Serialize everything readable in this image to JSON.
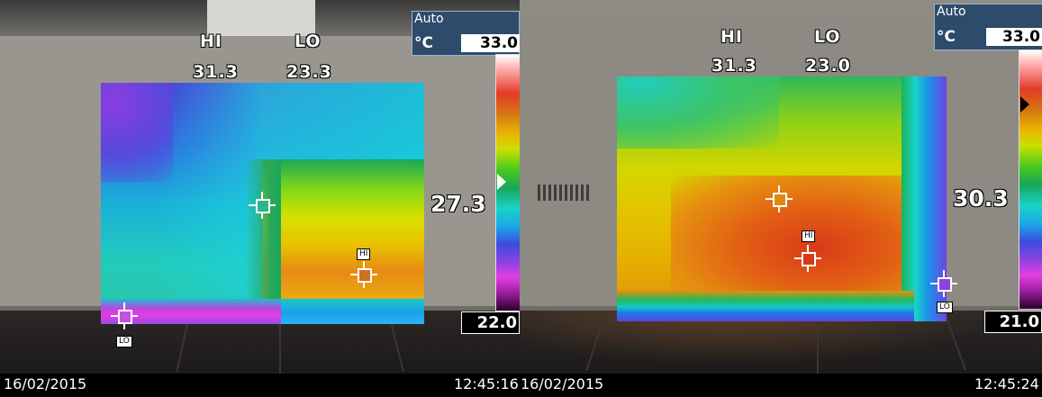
{
  "frames": [
    {
      "hi_label": "HI",
      "lo_label": "LO",
      "hi_value": "31.3",
      "lo_value": "23.3",
      "range_mode": "Auto",
      "unit": "°C",
      "scale_max": "33.0",
      "scale_min": "22.0",
      "center_temp": "27.3",
      "hi_marker_tag": "HI",
      "lo_marker_tag": "LO",
      "date": "16/02/2015",
      "time": "12:45:16"
    },
    {
      "hi_label": "HI",
      "lo_label": "LO",
      "hi_value": "31.3",
      "lo_value": "23.0",
      "range_mode": "Auto",
      "unit": "°C",
      "scale_max": "33.0",
      "scale_min": "21.0",
      "center_temp": "30.3",
      "hi_marker_tag": "HI",
      "lo_marker_tag": "LO",
      "date": "16/02/2015",
      "time": "12:45:24"
    }
  ],
  "palette": {
    "status_bg": "#000000",
    "auto_box_bg": "#2d4b6b",
    "crosshair_color": "#ffffff"
  },
  "icons": [
    "center-crosshair-icon",
    "hi-crosshair-icon",
    "lo-crosshair-icon",
    "scale-pointer-icon"
  ]
}
